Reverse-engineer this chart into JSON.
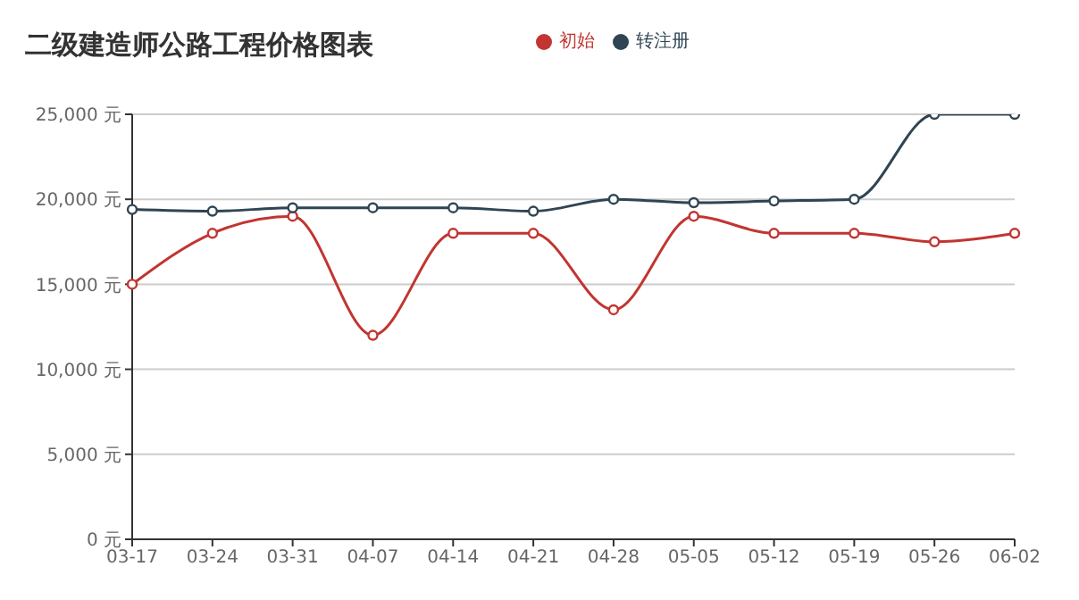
{
  "chart_data": {
    "type": "line",
    "title": "二级建造师公路工程价格图表",
    "categories": [
      "03-17",
      "03-24",
      "03-31",
      "04-07",
      "04-14",
      "04-21",
      "04-28",
      "05-05",
      "05-12",
      "05-19",
      "05-26",
      "06-02"
    ],
    "series": [
      {
        "name": "初始",
        "color": "#c23531",
        "values": [
          15000,
          18000,
          19000,
          12000,
          18000,
          18000,
          13500,
          19000,
          18000,
          18000,
          17500,
          18000
        ]
      },
      {
        "name": "转注册",
        "color": "#2f4554",
        "values": [
          19400,
          19300,
          19500,
          19500,
          19500,
          19300,
          20000,
          19800,
          19900,
          20000,
          25000,
          25000
        ]
      }
    ],
    "ylim": [
      0,
      25000
    ],
    "yticks": [
      {
        "value": 0,
        "label": "0 元"
      },
      {
        "value": 5000,
        "label": "5,000 元"
      },
      {
        "value": 10000,
        "label": "10,000 元"
      },
      {
        "value": 15000,
        "label": "15,000 元"
      },
      {
        "value": 20000,
        "label": "20,000 元"
      },
      {
        "value": 25000,
        "label": "25,000 元"
      }
    ],
    "grid": "y",
    "legend": "top",
    "marker": "circle",
    "line_style": "solid"
  }
}
